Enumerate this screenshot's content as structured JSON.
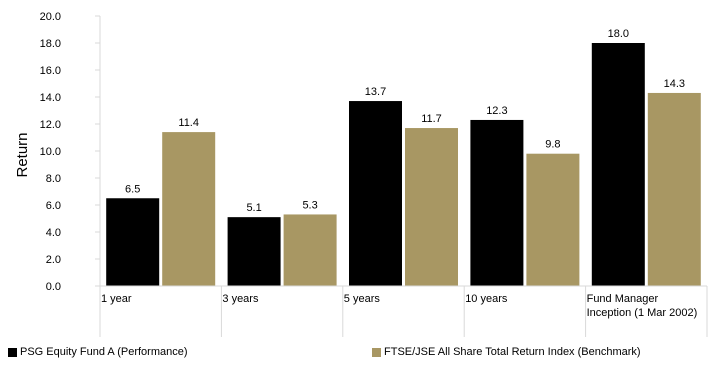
{
  "chart_data": {
    "type": "bar",
    "title": "",
    "xlabel": "",
    "ylabel": "Return",
    "ylim": [
      0,
      20
    ],
    "y_ticks": [
      "0.0",
      "2.0",
      "4.0",
      "6.0",
      "8.0",
      "10.0",
      "12.0",
      "14.0",
      "16.0",
      "18.0",
      "20.0"
    ],
    "categories": [
      [
        "1 year"
      ],
      [
        "3 years"
      ],
      [
        "5 years"
      ],
      [
        "10 years"
      ],
      [
        "Fund Manager",
        "Inception (1 Mar 2002)"
      ]
    ],
    "series": [
      {
        "name": "PSG Equity Fund A (Performance)",
        "color": "#000000",
        "values": [
          6.5,
          5.1,
          13.7,
          12.3,
          18.0
        ],
        "labels": [
          "6.5",
          "5.1",
          "13.7",
          "12.3",
          "18.0"
        ]
      },
      {
        "name": "FTSE/JSE All Share Total Return Index (Benchmark)",
        "color": "#a89763",
        "values": [
          11.4,
          5.3,
          11.7,
          9.8,
          14.3
        ],
        "labels": [
          "11.4",
          "5.3",
          "11.7",
          "9.8",
          "14.3"
        ]
      }
    ],
    "grid": false,
    "legend_position": "bottom"
  }
}
